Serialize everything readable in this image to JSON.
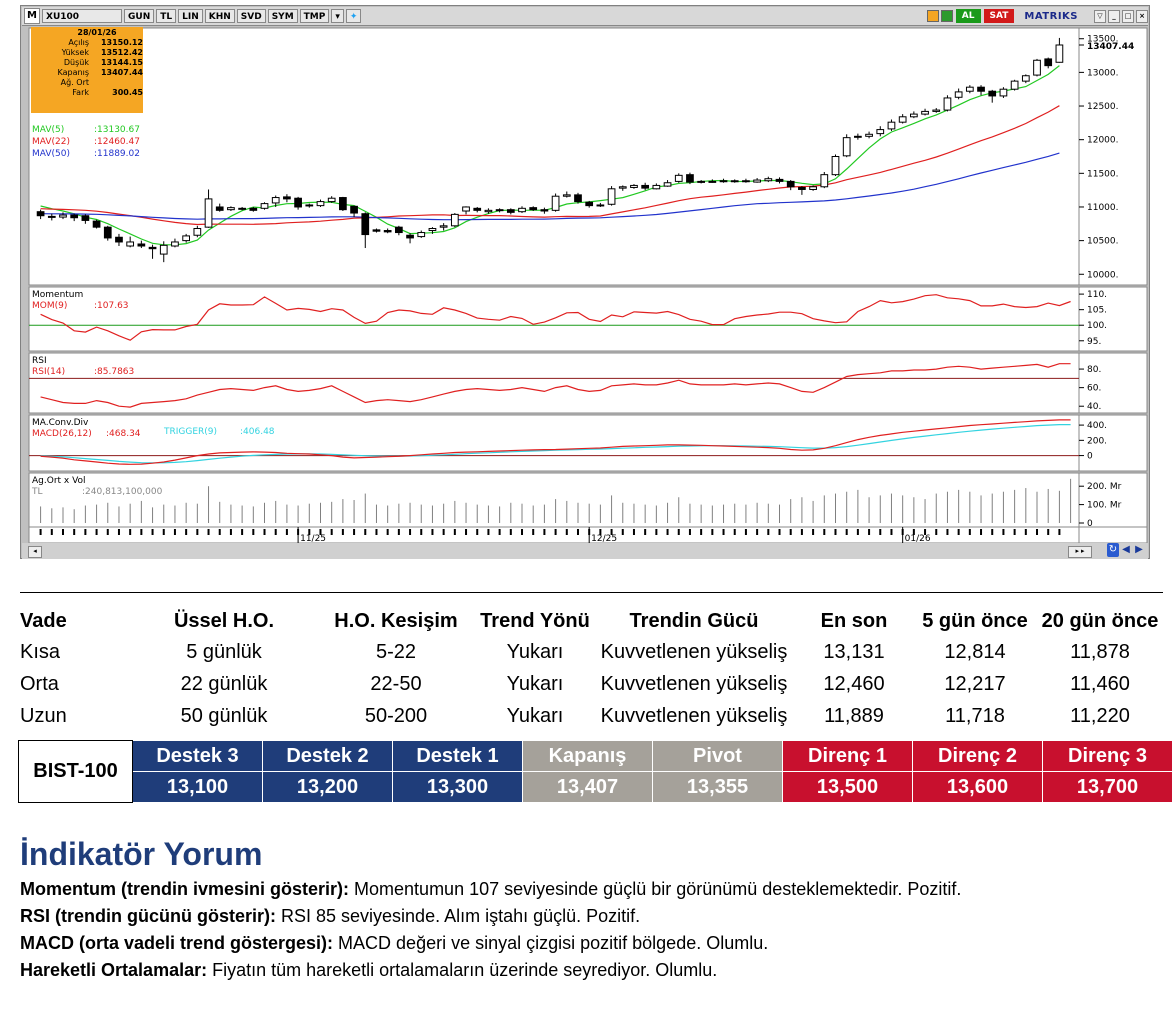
{
  "toolbar": {
    "logo": "M",
    "symbol": "XU100",
    "buttons": [
      "GUN",
      "TL",
      "LIN",
      "KHN",
      "SVD",
      "SYM",
      "TMP"
    ],
    "al": "AL",
    "sat": "SAT",
    "brand": "MATRIKS",
    "colors": {
      "al": "#1a9a1a",
      "sat": "#d21a1a",
      "brand": "#1b2a8a"
    }
  },
  "infobox": {
    "date": "28/01/26",
    "rows": [
      {
        "label": "Açılış",
        "value": "13150.12"
      },
      {
        "label": "Yüksek",
        "value": "13512.42"
      },
      {
        "label": "Düşük",
        "value": "13144.15"
      },
      {
        "label": "Kapanış",
        "value": "13407.44"
      },
      {
        "label": "Ağ. Ort",
        "value": ""
      },
      {
        "label": "Fark",
        "value": "300.45"
      }
    ]
  },
  "chart_data": [
    {
      "type": "candlestick",
      "title": "",
      "last_price_label": "13407.44",
      "ylim": [
        9900,
        13600
      ],
      "yticks": [
        "10000.",
        "10500.",
        "11000.",
        "11500.",
        "12000.",
        "12500.",
        "13000.",
        "13500."
      ],
      "legend": [
        {
          "name": "MAV(5)",
          "value": ":13130.67",
          "color": "#22c922"
        },
        {
          "name": "MAV(22)",
          "value": ":12460.47",
          "color": "#e02020"
        },
        {
          "name": "MAV(50)",
          "value": ":11889.02",
          "color": "#2233cc"
        }
      ],
      "xlabels": [
        "11/25",
        "12/25",
        "01/26"
      ],
      "candles": [
        [
          10930,
          10870,
          10960,
          10820
        ],
        [
          10860,
          10850,
          10900,
          10800
        ],
        [
          10850,
          10880,
          10920,
          10820
        ],
        [
          10880,
          10840,
          10900,
          10790
        ],
        [
          10870,
          10800,
          10890,
          10750
        ],
        [
          10790,
          10700,
          10810,
          10680
        ],
        [
          10700,
          10540,
          10720,
          10500
        ],
        [
          10550,
          10480,
          10600,
          10420
        ],
        [
          10420,
          10480,
          10560,
          10400
        ],
        [
          10450,
          10420,
          10500,
          10390
        ],
        [
          10400,
          10380,
          10440,
          10230
        ],
        [
          10300,
          10430,
          10490,
          10180
        ],
        [
          10420,
          10480,
          10530,
          10400
        ],
        [
          10500,
          10570,
          10600,
          10470
        ],
        [
          10580,
          10680,
          10720,
          10550
        ],
        [
          10700,
          11120,
          11260,
          10690
        ],
        [
          11000,
          10950,
          11050,
          10930
        ],
        [
          10960,
          10990,
          11010,
          10940
        ],
        [
          10970,
          10980,
          11000,
          10950
        ],
        [
          10980,
          10950,
          11000,
          10930
        ],
        [
          10980,
          11050,
          11070,
          10960
        ],
        [
          11060,
          11140,
          11170,
          11000
        ],
        [
          11150,
          11120,
          11190,
          11070
        ],
        [
          11130,
          11000,
          11150,
          10960
        ],
        [
          11030,
          11020,
          11050,
          10990
        ],
        [
          11020,
          11080,
          11110,
          11000
        ],
        [
          11080,
          11130,
          11160,
          11060
        ],
        [
          11140,
          10960,
          11150,
          10940
        ],
        [
          11010,
          10910,
          11020,
          10850
        ],
        [
          10900,
          10590,
          10920,
          10390
        ],
        [
          10660,
          10640,
          10680,
          10620
        ],
        [
          10650,
          10630,
          10680,
          10610
        ],
        [
          10700,
          10620,
          10720,
          10580
        ],
        [
          10580,
          10540,
          10610,
          10460
        ],
        [
          10560,
          10620,
          10650,
          10540
        ],
        [
          10650,
          10680,
          10700,
          10600
        ],
        [
          10700,
          10720,
          10760,
          10650
        ],
        [
          10720,
          10890,
          10910,
          10700
        ],
        [
          10940,
          11000,
          11010,
          10890
        ],
        [
          10980,
          10950,
          11000,
          10920
        ],
        [
          10930,
          10950,
          10980,
          10900
        ],
        [
          10960,
          10950,
          10980,
          10920
        ],
        [
          10960,
          10920,
          10980,
          10890
        ],
        [
          10930,
          10980,
          11010,
          10910
        ],
        [
          10990,
          10960,
          11010,
          10940
        ],
        [
          10960,
          10940,
          10990,
          10900
        ],
        [
          10950,
          11160,
          11200,
          10930
        ],
        [
          11160,
          11180,
          11230,
          11140
        ],
        [
          11180,
          11080,
          11210,
          11050
        ],
        [
          11070,
          11020,
          11090,
          10990
        ],
        [
          11030,
          11030,
          11060,
          11000
        ],
        [
          11040,
          11270,
          11310,
          11020
        ],
        [
          11280,
          11300,
          11320,
          11240
        ],
        [
          11290,
          11320,
          11340,
          11270
        ],
        [
          11320,
          11280,
          11360,
          11250
        ],
        [
          11270,
          11320,
          11350,
          11260
        ],
        [
          11310,
          11360,
          11400,
          11300
        ],
        [
          11380,
          11470,
          11500,
          11360
        ],
        [
          11480,
          11370,
          11510,
          11340
        ],
        [
          11380,
          11370,
          11400,
          11350
        ],
        [
          11380,
          11380,
          11410,
          11360
        ],
        [
          11390,
          11380,
          11420,
          11360
        ],
        [
          11380,
          11390,
          11410,
          11360
        ],
        [
          11390,
          11380,
          11420,
          11360
        ],
        [
          11370,
          11400,
          11430,
          11360
        ],
        [
          11390,
          11420,
          11450,
          11370
        ],
        [
          11410,
          11380,
          11440,
          11350
        ],
        [
          11380,
          11300,
          11400,
          11250
        ],
        [
          11290,
          11260,
          11310,
          11180
        ],
        [
          11260,
          11300,
          11320,
          11240
        ],
        [
          11300,
          11480,
          11520,
          11280
        ],
        [
          11480,
          11750,
          11780,
          11460
        ],
        [
          11760,
          12030,
          12080,
          11740
        ],
        [
          12040,
          12050,
          12090,
          12000
        ],
        [
          12050,
          12080,
          12120,
          12020
        ],
        [
          12090,
          12150,
          12200,
          12050
        ],
        [
          12160,
          12260,
          12300,
          12130
        ],
        [
          12260,
          12340,
          12380,
          12240
        ],
        [
          12340,
          12380,
          12420,
          12320
        ],
        [
          12380,
          12420,
          12460,
          12360
        ],
        [
          12420,
          12440,
          12470,
          12400
        ],
        [
          12440,
          12620,
          12660,
          12420
        ],
        [
          12630,
          12710,
          12760,
          12600
        ],
        [
          12720,
          12780,
          12810,
          12690
        ],
        [
          12780,
          12720,
          12810,
          12660
        ],
        [
          12720,
          12650,
          12740,
          12550
        ],
        [
          12650,
          12750,
          12780,
          12620
        ],
        [
          12750,
          12870,
          12890,
          12730
        ],
        [
          12870,
          12950,
          12970,
          12840
        ],
        [
          12960,
          13180,
          13200,
          12940
        ],
        [
          13200,
          13100,
          13220,
          13060
        ],
        [
          13150,
          13407,
          13512,
          13144
        ]
      ]
    },
    {
      "type": "line",
      "title": "Momentum",
      "series": [
        {
          "name": "MOM(9)",
          "value": ":107.63",
          "color": "#e02020"
        }
      ],
      "reference": 100,
      "ylim": [
        93,
        111
      ],
      "yticks": [
        "95.",
        "100.",
        "105.",
        "110."
      ],
      "values": [
        103.5,
        101.8,
        100.7,
        98.2,
        97.8,
        99.4,
        98.2,
        96.6,
        95.2,
        97.9,
        98.6,
        98.5,
        98.5,
        99.6,
        100.3,
        104.9,
        106.9,
        106.5,
        106.5,
        106.6,
        109.1,
        107.0,
        104.9,
        105.4,
        105.1,
        104.4,
        105.3,
        104.9,
        102.5,
        100.6,
        101.3,
        104.1,
        104.9,
        104.6,
        103.8,
        103.5,
        105.6,
        104.9,
        103.8,
        102.3,
        101.9,
        101.6,
        102.8,
        102.2,
        100.3,
        101.0,
        102.4,
        104.0,
        104.1,
        101.9,
        101.2,
        103.3,
        102.7,
        104.3,
        104.1,
        103.9,
        104.4,
        103.4,
        101.9,
        101.3,
        100.2,
        100.2,
        102.1,
        102.8,
        103.3,
        103.6,
        104.2,
        104.2,
        103.7,
        102.1,
        101.4,
        100.8,
        101.1,
        104.4,
        106.0,
        107.9,
        107.2,
        107.6,
        108.4,
        109.5,
        109.8,
        108.8,
        108.5,
        107.9,
        106.2,
        106.2,
        106.8,
        106.0,
        105.7,
        106.0,
        107.1,
        106.3,
        107.63
      ]
    },
    {
      "type": "line",
      "title": "RSI",
      "series": [
        {
          "name": "RSI(14)",
          "value": ":85.7863",
          "color": "#e02020"
        }
      ],
      "reference": 70,
      "ylim": [
        37,
        93
      ],
      "yticks": [
        "40.",
        "60.",
        "80."
      ],
      "values": [
        50,
        47,
        44,
        43,
        43,
        46,
        44,
        40,
        39,
        43,
        44,
        45,
        46,
        48,
        52,
        55,
        58,
        59,
        58,
        57,
        60,
        62,
        58,
        56,
        57,
        59,
        62,
        56,
        50,
        44,
        46,
        47,
        46,
        45,
        47,
        50,
        53,
        56,
        58,
        59,
        58,
        57,
        58,
        60,
        58,
        56,
        60,
        62,
        58,
        56,
        57,
        62,
        63,
        64,
        63,
        63,
        65,
        68,
        64,
        63,
        63,
        63,
        64,
        63,
        64,
        65,
        64,
        60,
        56,
        55,
        60,
        66,
        72,
        74,
        75,
        76,
        78,
        78,
        79,
        79,
        80,
        82,
        83,
        82,
        80,
        81,
        82,
        83,
        84,
        85,
        82,
        85.79,
        85.79
      ]
    },
    {
      "type": "line",
      "title": "MA.Conv.Div",
      "series": [
        {
          "name": "MACD(26,12)",
          "value": ":468.34",
          "color": "#e02020"
        },
        {
          "name": "TRIGGER(9)",
          "value": ":406.48",
          "color": "#33d3e0"
        }
      ],
      "reference": 0,
      "ylim": [
        -150,
        480
      ],
      "yticks": [
        "0",
        "200.",
        "400."
      ],
      "macd": [
        -10,
        -20,
        -35,
        -55,
        -70,
        -85,
        -100,
        -110,
        -115,
        -112,
        -100,
        -85,
        -60,
        -30,
        0,
        20,
        35,
        40,
        45,
        48,
        45,
        40,
        30,
        25,
        20,
        10,
        0,
        -20,
        -30,
        -25,
        -20,
        -15,
        -10,
        0,
        10,
        20,
        30,
        40,
        45,
        50,
        55,
        60,
        65,
        70,
        75,
        78,
        80,
        85,
        90,
        95,
        100,
        110,
        120,
        125,
        130,
        135,
        140,
        140,
        138,
        135,
        130,
        125,
        120,
        115,
        110,
        105,
        95,
        80,
        70,
        75,
        95,
        130,
        170,
        210,
        240,
        265,
        285,
        305,
        320,
        335,
        350,
        365,
        380,
        395,
        405,
        415,
        425,
        435,
        445,
        455,
        462,
        468.34,
        468.34
      ],
      "trigger": [
        -5,
        -10,
        -18,
        -28,
        -40,
        -52,
        -64,
        -76,
        -86,
        -93,
        -96,
        -95,
        -90,
        -80,
        -66,
        -50,
        -35,
        -20,
        -8,
        2,
        10,
        16,
        20,
        22,
        22,
        20,
        16,
        10,
        4,
        -2,
        -6,
        -8,
        -8,
        -6,
        -2,
        4,
        10,
        17,
        24,
        31,
        37,
        43,
        49,
        55,
        60,
        65,
        70,
        74,
        78,
        82,
        86,
        91,
        97,
        102,
        108,
        113,
        118,
        123,
        126,
        128,
        129,
        129,
        128,
        126,
        123,
        120,
        116,
        110,
        103,
        98,
        98,
        104,
        118,
        136,
        157,
        178,
        199,
        219,
        238,
        256,
        273,
        289,
        305,
        320,
        334,
        347,
        359,
        371,
        382,
        393,
        400,
        406.48,
        406.48
      ]
    },
    {
      "type": "bar",
      "title": "Ag.Ort x Vol",
      "series": [
        {
          "name": "TL",
          "value": ":240,813,100,000",
          "color": "#808080"
        }
      ],
      "ylim": [
        0,
        250
      ],
      "yticks": [
        "0",
        "100. Mr",
        "200. Mr"
      ],
      "values": [
        90,
        80,
        85,
        75,
        95,
        100,
        110,
        90,
        105,
        120,
        85,
        100,
        95,
        110,
        105,
        200,
        115,
        100,
        95,
        90,
        110,
        120,
        100,
        95,
        105,
        110,
        115,
        130,
        125,
        160,
        100,
        95,
        105,
        110,
        100,
        95,
        105,
        120,
        110,
        100,
        95,
        90,
        110,
        105,
        95,
        100,
        130,
        120,
        110,
        105,
        100,
        150,
        110,
        105,
        100,
        95,
        110,
        140,
        105,
        100,
        95,
        100,
        105,
        100,
        110,
        105,
        100,
        130,
        140,
        120,
        150,
        160,
        170,
        180,
        140,
        150,
        160,
        150,
        140,
        130,
        160,
        170,
        180,
        170,
        150,
        160,
        170,
        180,
        190,
        170,
        185,
        175,
        240
      ]
    }
  ],
  "trend_table": {
    "headers": [
      "Vade",
      "Üssel H.O.",
      "H.O. Kesişim",
      "Trend Yönü",
      "Trendin Gücü",
      "En son",
      "5 gün önce",
      "20 gün önce"
    ],
    "rows": [
      [
        "Kısa",
        "5 günlük",
        "5-22",
        "Yukarı",
        "Kuvvetlenen yükseliş",
        "13,131",
        "12,814",
        "11,878"
      ],
      [
        "Orta",
        "22 günlük",
        "22-50",
        "Yukarı",
        "Kuvvetlenen yükseliş",
        "12,460",
        "12,217",
        "11,460"
      ],
      [
        "Uzun",
        "50 günlük",
        "50-200",
        "Yukarı",
        "Kuvvetlenen yükseliş",
        "11,889",
        "11,718",
        "11,220"
      ]
    ]
  },
  "levels": {
    "name": "BIST-100",
    "labels": [
      "Destek 3",
      "Destek 2",
      "Destek 1",
      "Kapanış",
      "Pivot",
      "Direnç 1",
      "Direnç 2",
      "Direnç 3"
    ],
    "values": [
      "13,100",
      "13,200",
      "13,300",
      "13,407",
      "13,355",
      "13,500",
      "13,600",
      "13,700"
    ],
    "colors": {
      "destek": "#1f3d7a",
      "neutral": "#a5a19a",
      "direnc": "#c8102e"
    }
  },
  "commentary": {
    "title": "İndikatör Yorum",
    "items": [
      {
        "label": "Momentum (trendin ivmesini gösterir):",
        "text": " Momentumun 107 seviyesinde güçlü bir görünümü desteklemektedir. Pozitif."
      },
      {
        "label": "RSI (trendin gücünü gösterir):",
        "text": " RSI 85 seviyesinde. Alım iştahı güçlü. Pozitif."
      },
      {
        "label": "MACD (orta vadeli trend göstergesi):",
        "text": " MACD değeri ve sinyal çizgisi pozitif bölgede. Olumlu."
      },
      {
        "label": "Hareketli Ortalamalar:",
        "text": " Fiyatın tüm hareketli ortalamaların üzerinde seyrediyor. Olumlu."
      }
    ]
  }
}
